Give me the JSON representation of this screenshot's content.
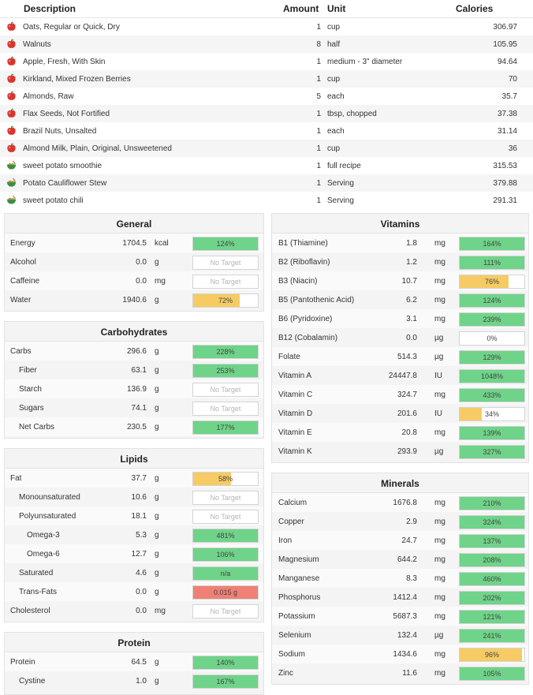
{
  "colors": {
    "green": "#6fd389",
    "yellow": "#f6cb64",
    "red": "#ef8075",
    "notarget": "#ffffff"
  },
  "diary": {
    "headers": {
      "description": "Description",
      "amount": "Amount",
      "unit": "Unit",
      "calories": "Calories"
    },
    "rows": [
      {
        "icon": "apple-icon",
        "desc": "Oats, Regular or Quick, Dry",
        "amount": "1",
        "unit": "cup",
        "cal": "306.97"
      },
      {
        "icon": "apple-icon",
        "desc": "Walnuts",
        "amount": "8",
        "unit": "half",
        "cal": "105.95"
      },
      {
        "icon": "apple-icon",
        "desc": "Apple, Fresh, With Skin",
        "amount": "1",
        "unit": "medium - 3\" diameter",
        "cal": "94.64"
      },
      {
        "icon": "apple-icon",
        "desc": "Kirkland, Mixed Frozen Berries",
        "amount": "1",
        "unit": "cup",
        "cal": "70"
      },
      {
        "icon": "apple-icon",
        "desc": "Almonds, Raw",
        "amount": "5",
        "unit": "each",
        "cal": "35.7"
      },
      {
        "icon": "apple-icon",
        "desc": "Flax Seeds, Not Fortified",
        "amount": "1",
        "unit": "tbsp, chopped",
        "cal": "37.38"
      },
      {
        "icon": "apple-icon",
        "desc": "Brazil Nuts, Unsalted",
        "amount": "1",
        "unit": "each",
        "cal": "31.14"
      },
      {
        "icon": "apple-icon",
        "desc": "Almond Milk, Plain, Original, Unsweetened",
        "amount": "1",
        "unit": "cup",
        "cal": "36"
      },
      {
        "icon": "bowl-icon",
        "desc": "sweet potato smoothie",
        "amount": "1",
        "unit": "full recipe",
        "cal": "315.53"
      },
      {
        "icon": "bowl-icon",
        "desc": "Potato Cauliflower Stew",
        "amount": "1",
        "unit": "Serving",
        "cal": "379.88"
      },
      {
        "icon": "bowl-icon",
        "desc": "sweet potato chili",
        "amount": "1",
        "unit": "Serving",
        "cal": "291.31"
      }
    ]
  },
  "panels": {
    "general": {
      "title": "General",
      "rows": [
        {
          "name": "Energy",
          "value": "1704.5",
          "unit": "kcal",
          "label": "124%",
          "pct": 100,
          "color": "green"
        },
        {
          "name": "Alcohol",
          "value": "0.0",
          "unit": "g",
          "label": "No Target",
          "pct": 0,
          "color": "notarget"
        },
        {
          "name": "Caffeine",
          "value": "0.0",
          "unit": "mg",
          "label": "No Target",
          "pct": 0,
          "color": "notarget"
        },
        {
          "name": "Water",
          "value": "1940.6",
          "unit": "g",
          "label": "72%",
          "pct": 72,
          "color": "yellow"
        }
      ]
    },
    "carbs": {
      "title": "Carbohydrates",
      "rows": [
        {
          "name": "Carbs",
          "value": "296.6",
          "unit": "g",
          "label": "228%",
          "pct": 100,
          "color": "green"
        },
        {
          "name": "Fiber",
          "value": "63.1",
          "unit": "g",
          "label": "253%",
          "pct": 100,
          "color": "green",
          "indent": 1
        },
        {
          "name": "Starch",
          "value": "136.9",
          "unit": "g",
          "label": "No Target",
          "pct": 0,
          "color": "notarget",
          "indent": 1
        },
        {
          "name": "Sugars",
          "value": "74.1",
          "unit": "g",
          "label": "No Target",
          "pct": 0,
          "color": "notarget",
          "indent": 1
        },
        {
          "name": "Net Carbs",
          "value": "230.5",
          "unit": "g",
          "label": "177%",
          "pct": 100,
          "color": "green",
          "indent": 1
        }
      ]
    },
    "lipids": {
      "title": "Lipids",
      "rows": [
        {
          "name": "Fat",
          "value": "37.7",
          "unit": "g",
          "label": "58%",
          "pct": 58,
          "color": "yellow"
        },
        {
          "name": "Monounsaturated",
          "value": "10.6",
          "unit": "g",
          "label": "No Target",
          "pct": 0,
          "color": "notarget",
          "indent": 1
        },
        {
          "name": "Polyunsaturated",
          "value": "18.1",
          "unit": "g",
          "label": "No Target",
          "pct": 0,
          "color": "notarget",
          "indent": 1
        },
        {
          "name": "Omega-3",
          "value": "5.3",
          "unit": "g",
          "label": "481%",
          "pct": 100,
          "color": "green",
          "indent": 2
        },
        {
          "name": "Omega-6",
          "value": "12.7",
          "unit": "g",
          "label": "106%",
          "pct": 100,
          "color": "green",
          "indent": 2
        },
        {
          "name": "Saturated",
          "value": "4.6",
          "unit": "g",
          "label": "n/a",
          "pct": 100,
          "color": "green",
          "indent": 1
        },
        {
          "name": "Trans-Fats",
          "value": "0.0",
          "unit": "g",
          "label": "0.015 g",
          "pct": 100,
          "color": "red",
          "indent": 1
        },
        {
          "name": "Cholesterol",
          "value": "0.0",
          "unit": "mg",
          "label": "No Target",
          "pct": 0,
          "color": "notarget"
        }
      ]
    },
    "protein": {
      "title": "Protein",
      "rows": [
        {
          "name": "Protein",
          "value": "64.5",
          "unit": "g",
          "label": "140%",
          "pct": 100,
          "color": "green"
        },
        {
          "name": "Cystine",
          "value": "1.0",
          "unit": "g",
          "label": "167%",
          "pct": 100,
          "color": "green",
          "indent": 1
        }
      ]
    },
    "vitamins": {
      "title": "Vitamins",
      "rows": [
        {
          "name": "B1 (Thiamine)",
          "value": "1.8",
          "unit": "mg",
          "label": "164%",
          "pct": 100,
          "color": "green"
        },
        {
          "name": "B2 (Riboflavin)",
          "value": "1.2",
          "unit": "mg",
          "label": "111%",
          "pct": 100,
          "color": "green"
        },
        {
          "name": "B3 (Niacin)",
          "value": "10.7",
          "unit": "mg",
          "label": "76%",
          "pct": 76,
          "color": "yellow"
        },
        {
          "name": "B5 (Pantothenic Acid)",
          "value": "6.2",
          "unit": "mg",
          "label": "124%",
          "pct": 100,
          "color": "green"
        },
        {
          "name": "B6 (Pyridoxine)",
          "value": "3.1",
          "unit": "mg",
          "label": "239%",
          "pct": 100,
          "color": "green"
        },
        {
          "name": "B12 (Cobalamin)",
          "value": "0.0",
          "unit": "µg",
          "label": "0%",
          "pct": 0,
          "color": "notarget",
          "hasTarget": true
        },
        {
          "name": "Folate",
          "value": "514.3",
          "unit": "µg",
          "label": "129%",
          "pct": 100,
          "color": "green"
        },
        {
          "name": "Vitamin A",
          "value": "24447.8",
          "unit": "IU",
          "label": "1048%",
          "pct": 100,
          "color": "green"
        },
        {
          "name": "Vitamin C",
          "value": "324.7",
          "unit": "mg",
          "label": "433%",
          "pct": 100,
          "color": "green"
        },
        {
          "name": "Vitamin D",
          "value": "201.6",
          "unit": "IU",
          "label": "34%",
          "pct": 34,
          "color": "yellow"
        },
        {
          "name": "Vitamin E",
          "value": "20.8",
          "unit": "mg",
          "label": "139%",
          "pct": 100,
          "color": "green"
        },
        {
          "name": "Vitamin K",
          "value": "293.9",
          "unit": "µg",
          "label": "327%",
          "pct": 100,
          "color": "green"
        }
      ]
    },
    "minerals": {
      "title": "Minerals",
      "rows": [
        {
          "name": "Calcium",
          "value": "1676.8",
          "unit": "mg",
          "label": "210%",
          "pct": 100,
          "color": "green"
        },
        {
          "name": "Copper",
          "value": "2.9",
          "unit": "mg",
          "label": "324%",
          "pct": 100,
          "color": "green"
        },
        {
          "name": "Iron",
          "value": "24.7",
          "unit": "mg",
          "label": "137%",
          "pct": 100,
          "color": "green"
        },
        {
          "name": "Magnesium",
          "value": "644.2",
          "unit": "mg",
          "label": "208%",
          "pct": 100,
          "color": "green"
        },
        {
          "name": "Manganese",
          "value": "8.3",
          "unit": "mg",
          "label": "460%",
          "pct": 100,
          "color": "green"
        },
        {
          "name": "Phosphorus",
          "value": "1412.4",
          "unit": "mg",
          "label": "202%",
          "pct": 100,
          "color": "green"
        },
        {
          "name": "Potassium",
          "value": "5687.3",
          "unit": "mg",
          "label": "121%",
          "pct": 100,
          "color": "green"
        },
        {
          "name": "Selenium",
          "value": "132.4",
          "unit": "µg",
          "label": "241%",
          "pct": 100,
          "color": "green"
        },
        {
          "name": "Sodium",
          "value": "1434.6",
          "unit": "mg",
          "label": "96%",
          "pct": 96,
          "color": "yellow"
        },
        {
          "name": "Zinc",
          "value": "11.6",
          "unit": "mg",
          "label": "105%",
          "pct": 100,
          "color": "green"
        }
      ]
    }
  }
}
